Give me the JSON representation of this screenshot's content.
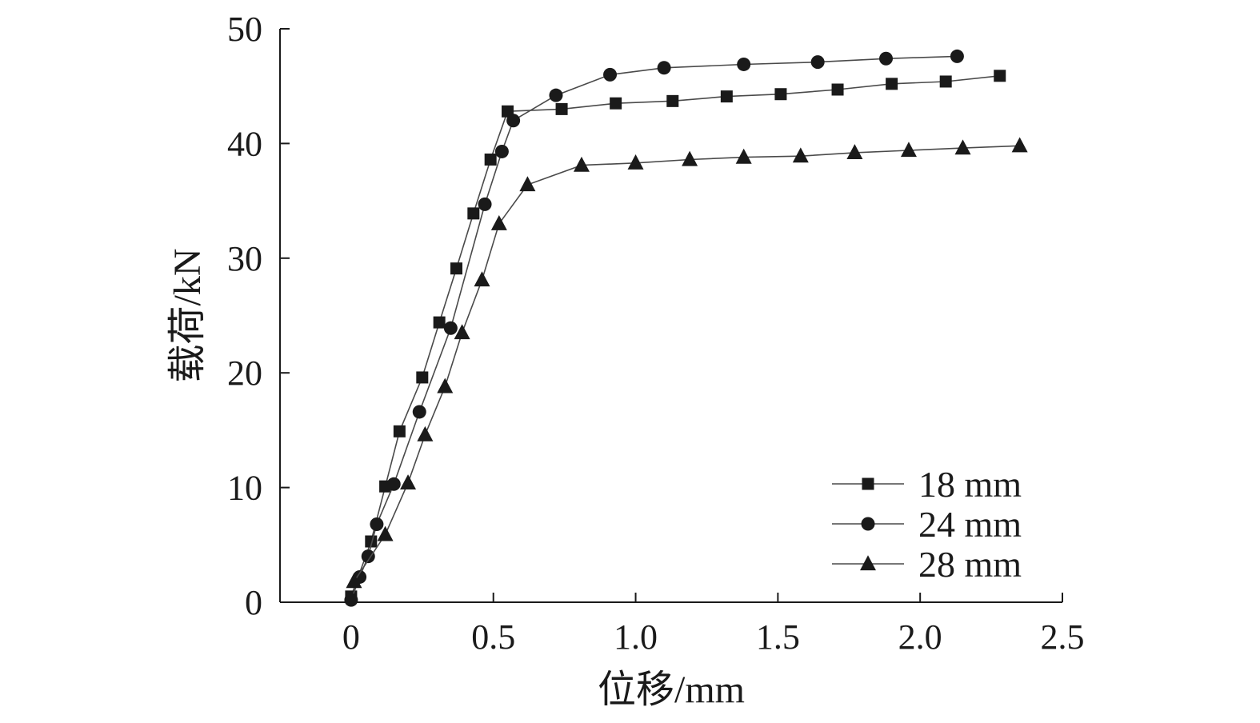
{
  "chart_data": {
    "type": "line",
    "xlabel": "位移/mm",
    "ylabel": "载荷/kN",
    "xlim": [
      -0.25,
      2.5
    ],
    "ylim": [
      0,
      50
    ],
    "xticks": [
      0,
      0.5,
      1.0,
      1.5,
      2.0,
      2.5
    ],
    "xtick_labels": [
      "0",
      "0.5",
      "1.0",
      "1.5",
      "2.0",
      "2.5"
    ],
    "yticks": [
      0,
      10,
      20,
      30,
      40,
      50
    ],
    "ytick_labels": [
      "0",
      "10",
      "20",
      "30",
      "40",
      "50"
    ],
    "grid": false,
    "legend_position": "bottom-right",
    "series": [
      {
        "name": "18 mm",
        "marker": "square",
        "x": [
          0.0,
          0.07,
          0.12,
          0.17,
          0.25,
          0.31,
          0.37,
          0.43,
          0.49,
          0.55,
          0.74,
          0.93,
          1.13,
          1.32,
          1.51,
          1.71,
          1.9,
          2.09,
          2.28
        ],
        "y": [
          0.5,
          5.3,
          10.1,
          14.9,
          19.6,
          24.4,
          29.1,
          33.9,
          38.6,
          42.8,
          43.0,
          43.5,
          43.7,
          44.1,
          44.3,
          44.7,
          45.2,
          45.4,
          45.9
        ]
      },
      {
        "name": "24 mm",
        "marker": "circle",
        "x": [
          0.0,
          0.03,
          0.06,
          0.09,
          0.15,
          0.24,
          0.35,
          0.47,
          0.53,
          0.57,
          0.72,
          0.91,
          1.1,
          1.38,
          1.64,
          1.88,
          2.13
        ],
        "y": [
          0.2,
          2.2,
          4.0,
          6.8,
          10.3,
          16.6,
          23.9,
          34.7,
          39.3,
          42.0,
          44.2,
          46.0,
          46.6,
          46.9,
          47.1,
          47.4,
          47.6
        ],
        "markers_at": "all"
      },
      {
        "name": "28 mm",
        "marker": "triangle",
        "x": [
          0.01,
          0.12,
          0.2,
          0.26,
          0.33,
          0.39,
          0.46,
          0.52,
          0.62,
          0.81,
          1.0,
          1.19,
          1.38,
          1.58,
          1.77,
          1.96,
          2.15,
          2.35
        ],
        "y": [
          1.8,
          5.9,
          10.4,
          14.6,
          18.8,
          23.5,
          28.1,
          33.0,
          36.4,
          38.1,
          38.3,
          38.6,
          38.8,
          38.9,
          39.2,
          39.4,
          39.6,
          39.8
        ]
      }
    ]
  },
  "colors": {
    "ink": "#1a1a1a",
    "line": "#4a4a4a"
  }
}
